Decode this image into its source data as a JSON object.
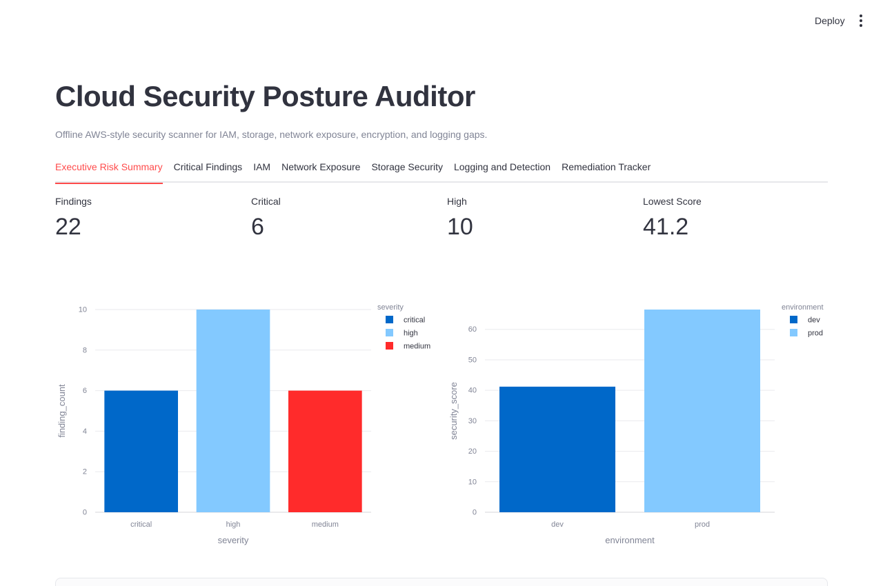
{
  "header": {
    "deploy_label": "Deploy",
    "menu_icon": "vertical-ellipsis-icon"
  },
  "page": {
    "title": "Cloud Security Posture Auditor",
    "caption": "Offline AWS-style security scanner for IAM, storage, network exposure, encryption, and logging gaps."
  },
  "tabs": [
    {
      "label": "Executive Risk Summary",
      "active": true
    },
    {
      "label": "Critical Findings",
      "active": false
    },
    {
      "label": "IAM",
      "active": false
    },
    {
      "label": "Network Exposure",
      "active": false
    },
    {
      "label": "Storage Security",
      "active": false
    },
    {
      "label": "Logging and Detection",
      "active": false
    },
    {
      "label": "Remediation Tracker",
      "active": false
    }
  ],
  "metrics": [
    {
      "label": "Findings",
      "value": "22"
    },
    {
      "label": "Critical",
      "value": "6"
    },
    {
      "label": "High",
      "value": "10"
    },
    {
      "label": "Lowest Score",
      "value": "41.2"
    }
  ],
  "colors": {
    "accent": "#ff4b4b",
    "text": "#31333f",
    "muted": "#808495"
  },
  "chart_data": [
    {
      "type": "bar",
      "categories": [
        "critical",
        "high",
        "medium"
      ],
      "values": [
        6,
        10,
        6
      ],
      "colors": [
        "#0068c9",
        "#83c9ff",
        "#ff2b2b"
      ],
      "xlabel": "severity",
      "ylabel": "finding_count",
      "ylim": [
        0,
        10
      ],
      "yticks": [
        0,
        2,
        4,
        6,
        8,
        10
      ],
      "legend_title": "severity",
      "legend_position": "top-right",
      "grid": true
    },
    {
      "type": "bar",
      "categories": [
        "dev",
        "prod"
      ],
      "values": [
        41.2,
        66.5
      ],
      "colors": [
        "#0068c9",
        "#83c9ff"
      ],
      "xlabel": "environment",
      "ylabel": "security_score",
      "ylim": [
        0,
        66.5
      ],
      "yticks": [
        0,
        10,
        20,
        30,
        40,
        50,
        60
      ],
      "legend_title": "environment",
      "legend_position": "top-right",
      "grid": true
    }
  ]
}
